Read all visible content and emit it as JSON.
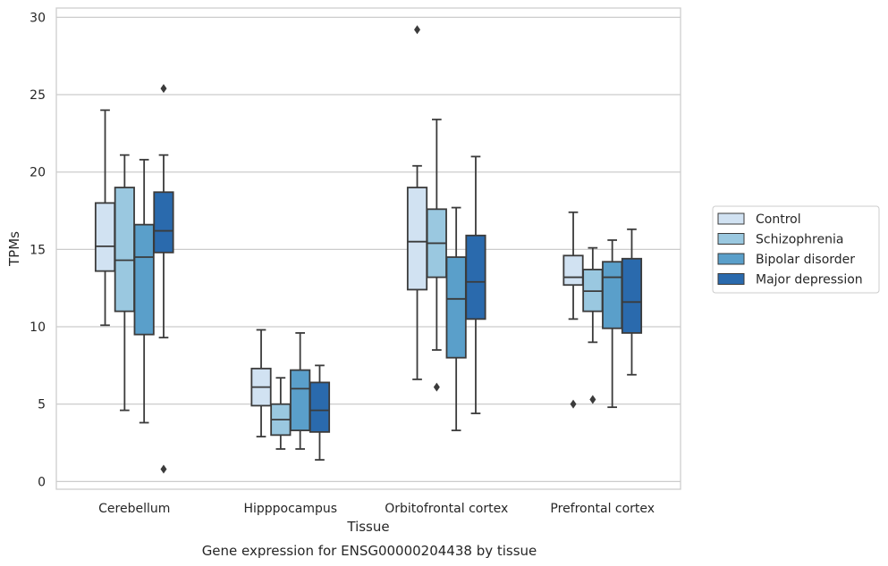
{
  "chart_data": {
    "type": "box",
    "title": "",
    "caption": "Gene expression for ENSG00000204438 by tissue",
    "xlabel": "Tissue",
    "ylabel": "TPMs",
    "ylim": [
      -0.5,
      30.6
    ],
    "yticks": [
      0,
      5,
      10,
      15,
      20,
      25,
      30
    ],
    "grid": "horizontal",
    "legend_position": "right",
    "categories": [
      "Cerebellum",
      "Hipppocampus",
      "Orbitofrontal cortex",
      "Prefrontal cortex"
    ],
    "series": [
      {
        "name": "Control",
        "color": "#d1e2f2",
        "boxes": [
          {
            "whislo": 10.1,
            "q1": 13.6,
            "med": 15.2,
            "q3": 18.0,
            "whishi": 24.0,
            "fliers": []
          },
          {
            "whislo": 2.9,
            "q1": 4.9,
            "med": 6.1,
            "q3": 7.3,
            "whishi": 9.8,
            "fliers": []
          },
          {
            "whislo": 6.6,
            "q1": 12.4,
            "med": 15.5,
            "q3": 19.0,
            "whishi": 20.4,
            "fliers": [
              29.2
            ]
          },
          {
            "whislo": 10.5,
            "q1": 12.7,
            "med": 13.2,
            "q3": 14.6,
            "whishi": 17.4,
            "fliers": [
              5.0
            ]
          }
        ]
      },
      {
        "name": "Schizophrenia",
        "color": "#9ac8e0",
        "boxes": [
          {
            "whislo": 4.6,
            "q1": 11.0,
            "med": 14.3,
            "q3": 19.0,
            "whishi": 21.1,
            "fliers": []
          },
          {
            "whislo": 2.1,
            "q1": 3.0,
            "med": 4.0,
            "q3": 5.0,
            "whishi": 6.7,
            "fliers": []
          },
          {
            "whislo": 8.5,
            "q1": 13.2,
            "med": 15.4,
            "q3": 17.6,
            "whishi": 23.4,
            "fliers": [
              6.1
            ]
          },
          {
            "whislo": 9.0,
            "q1": 11.0,
            "med": 12.3,
            "q3": 13.7,
            "whishi": 15.1,
            "fliers": [
              5.3
            ]
          }
        ]
      },
      {
        "name": "Bipolar disorder",
        "color": "#5a9fca",
        "boxes": [
          {
            "whislo": 3.8,
            "q1": 9.5,
            "med": 14.5,
            "q3": 16.6,
            "whishi": 20.8,
            "fliers": []
          },
          {
            "whislo": 2.1,
            "q1": 3.3,
            "med": 6.0,
            "q3": 7.2,
            "whishi": 9.6,
            "fliers": []
          },
          {
            "whislo": 3.3,
            "q1": 8.0,
            "med": 11.8,
            "q3": 14.5,
            "whishi": 17.7,
            "fliers": []
          },
          {
            "whislo": 4.8,
            "q1": 9.9,
            "med": 13.2,
            "q3": 14.2,
            "whishi": 15.6,
            "fliers": []
          }
        ]
      },
      {
        "name": "Major depression",
        "color": "#2a6aad",
        "boxes": [
          {
            "whislo": 9.3,
            "q1": 14.8,
            "med": 16.2,
            "q3": 18.7,
            "whishi": 21.1,
            "fliers": [
              25.4,
              0.8
            ]
          },
          {
            "whislo": 1.4,
            "q1": 3.2,
            "med": 4.6,
            "q3": 6.4,
            "whishi": 7.5,
            "fliers": []
          },
          {
            "whislo": 4.4,
            "q1": 10.5,
            "med": 12.9,
            "q3": 15.9,
            "whishi": 21.0,
            "fliers": []
          },
          {
            "whislo": 6.9,
            "q1": 9.6,
            "med": 11.6,
            "q3": 14.4,
            "whishi": 16.3,
            "fliers": []
          }
        ]
      }
    ]
  }
}
